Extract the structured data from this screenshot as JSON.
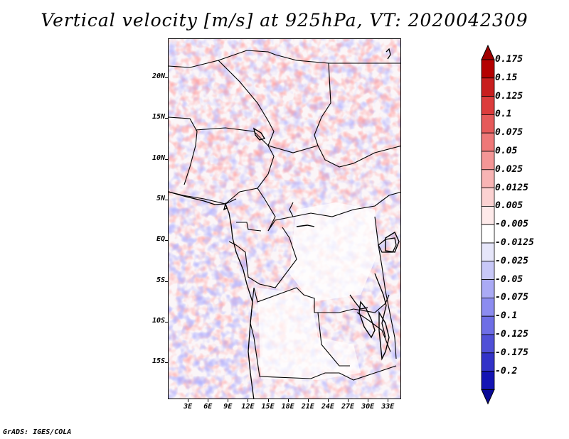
{
  "title": "Vertical velocity [m/s] at 925hPa, VT: 2020042309",
  "map": {
    "lat_labels": [
      "20N",
      "15N",
      "10N",
      "5N",
      "EQ",
      "5S",
      "10S",
      "15S"
    ],
    "lat_values": [
      20,
      15,
      10,
      5,
      0,
      -5,
      -10,
      -15
    ],
    "lon_labels": [
      "3E",
      "6E",
      "9E",
      "12E",
      "15E",
      "18E",
      "21E",
      "24E",
      "27E",
      "30E",
      "33E"
    ],
    "lon_values": [
      3,
      6,
      9,
      12,
      15,
      18,
      21,
      24,
      27,
      30,
      33
    ],
    "lat_range": [
      -19.5,
      24.8
    ],
    "lon_range": [
      0,
      35
    ]
  },
  "colorbar": {
    "labels": [
      "0.175",
      "0.15",
      "0.125",
      "0.1",
      "0.075",
      "0.05",
      "0.025",
      "0.0125",
      "0.005",
      "-0.005",
      "-0.0125",
      "-0.025",
      "-0.05",
      "-0.075",
      "-0.1",
      "-0.125",
      "-0.175",
      "-0.2"
    ],
    "colors": [
      "#b40000",
      "#c81e1e",
      "#dc3c3c",
      "#e65a5a",
      "#ee7878",
      "#f49696",
      "#f8b4b4",
      "#fcd2d2",
      "#feeaea",
      "#ffffff",
      "#e6e6fa",
      "#c8c8f8",
      "#aaaaf5",
      "#8c8cf0",
      "#6e6ee6",
      "#5050d7",
      "#3232c8",
      "#1414b4"
    ],
    "top_color": "#a00000",
    "bottom_color": "#0a0a96"
  },
  "footer": "GrADS: IGES/COLA"
}
